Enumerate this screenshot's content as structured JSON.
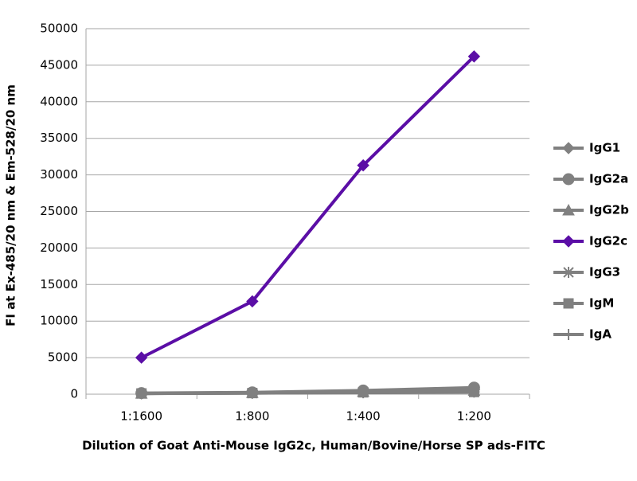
{
  "chart_data": {
    "type": "line",
    "x_label": "Dilution of Goat Anti-Mouse IgG2c, Human/Bovine/Horse SP ads-FITC",
    "y_label": "FI at Ex-485/20 nm & Em-528/20 nm",
    "categories": [
      "1:1600",
      "1:800",
      "1:400",
      "1:200"
    ],
    "series": [
      {
        "name": "IgG1",
        "color": "#808080",
        "marker": "diamond",
        "values": [
          100,
          200,
          400,
          600
        ]
      },
      {
        "name": "IgG2a",
        "color": "#808080",
        "marker": "circle",
        "values": [
          150,
          250,
          500,
          900
        ]
      },
      {
        "name": "IgG2b",
        "color": "#808080",
        "marker": "triangle",
        "values": [
          100,
          200,
          350,
          500
        ]
      },
      {
        "name": "IgG2c",
        "color": "#5b0ea6",
        "marker": "diamond",
        "values": [
          5000,
          12700,
          31300,
          46200
        ]
      },
      {
        "name": "IgG3",
        "color": "#808080",
        "marker": "star",
        "values": [
          100,
          150,
          300,
          400
        ]
      },
      {
        "name": "IgM",
        "color": "#808080",
        "marker": "square",
        "values": [
          100,
          150,
          250,
          300
        ]
      },
      {
        "name": "IgA",
        "color": "#808080",
        "marker": "plus",
        "values": [
          100,
          150,
          200,
          300
        ]
      }
    ],
    "ylim": [
      0,
      50000
    ],
    "yticks": [
      0,
      5000,
      10000,
      15000,
      20000,
      25000,
      30000,
      35000,
      40000,
      45000,
      50000
    ],
    "grid": true,
    "legend": "right"
  }
}
